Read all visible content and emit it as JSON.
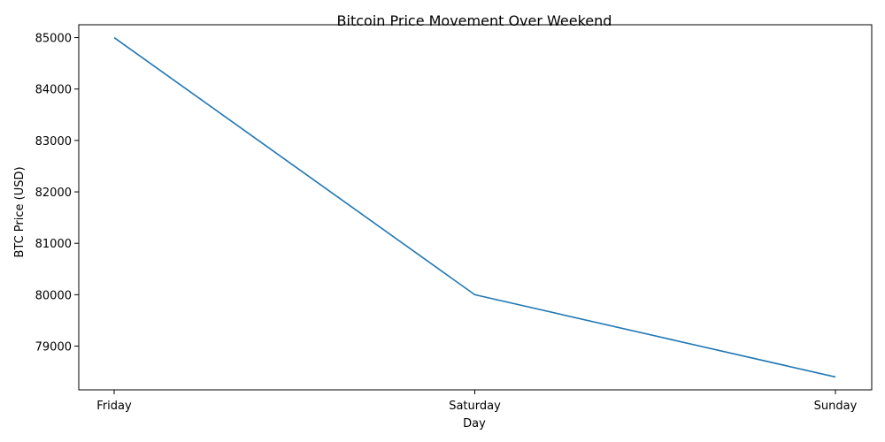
{
  "chart_data": {
    "type": "line",
    "title": "Bitcoin Price Movement Over Weekend",
    "xlabel": "Day",
    "ylabel": "BTC Price (USD)",
    "categories": [
      "Friday",
      "Saturday",
      "Sunday"
    ],
    "series": [
      {
        "values": [
          85000,
          80000,
          78400
        ],
        "color": "#1f77b4"
      }
    ],
    "yticks": [
      79000,
      80000,
      81000,
      82000,
      83000,
      84000,
      85000
    ],
    "ylim": [
      78150,
      85250
    ],
    "grid": false,
    "legend": "none"
  }
}
